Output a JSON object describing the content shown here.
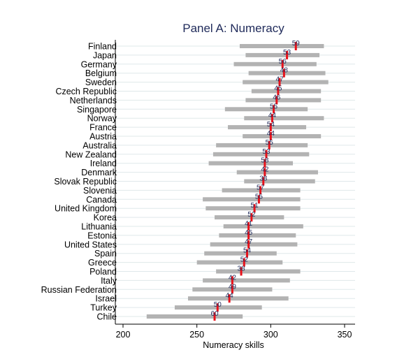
{
  "chart_data": {
    "type": "bar",
    "title": "Panel A: Numeracy",
    "xlabel": "Numeracy skills",
    "ylabel": "",
    "xlim": [
      200,
      350
    ],
    "xticks": [
      200,
      250,
      300,
      350
    ],
    "grid": true,
    "colors": {
      "range_bar": "#b3b3b3",
      "mean_marker": "#e8111a",
      "title": "#1f2a5a",
      "value_label": "#1f2a5a",
      "grid": "#dfe8ea"
    },
    "rows": [
      {
        "country": "Finland",
        "low": 279,
        "high": 336,
        "mean": 317,
        "label": "59"
      },
      {
        "country": "Japan",
        "low": 283,
        "high": 333,
        "mean": 311,
        "label": "53"
      },
      {
        "country": "Germany",
        "low": 275,
        "high": 331,
        "mean": 308,
        "label": "56"
      },
      {
        "country": "Belgium",
        "low": 285,
        "high": 337,
        "mean": 309,
        "label": "48"
      },
      {
        "country": "Sweden",
        "low": 281,
        "high": 339,
        "mean": 306,
        "label": "47"
      },
      {
        "country": "Czech Republic",
        "low": 287,
        "high": 334,
        "mean": 305,
        "label": "45"
      },
      {
        "country": "Netherlands",
        "low": 283,
        "high": 334,
        "mean": 304,
        "label": "46"
      },
      {
        "country": "Singapore",
        "low": 269,
        "high": 325,
        "mean": 302,
        "label": "55"
      },
      {
        "country": "Norway",
        "low": 282,
        "high": 336,
        "mean": 301,
        "label": "44"
      },
      {
        "country": "France",
        "low": 271,
        "high": 324,
        "mean": 300,
        "label": "54"
      },
      {
        "country": "Austria",
        "low": 281,
        "high": 334,
        "mean": 300,
        "label": "44"
      },
      {
        "country": "Australia",
        "low": 263,
        "high": 325,
        "mean": 299,
        "label": "55"
      },
      {
        "country": "New Zealand",
        "low": 261,
        "high": 326,
        "mean": 297,
        "label": "53"
      },
      {
        "country": "Ireland",
        "low": 258,
        "high": 315,
        "mean": 296,
        "label": "58"
      },
      {
        "country": "Denmark",
        "low": 277,
        "high": 332,
        "mean": 296,
        "label": "42"
      },
      {
        "country": "Slovak Republic",
        "low": 282,
        "high": 330,
        "mean": 295,
        "label": "38"
      },
      {
        "country": "Slovenia",
        "low": 267,
        "high": 320,
        "mean": 293,
        "label": "57"
      },
      {
        "country": "Canada",
        "low": 254,
        "high": 320,
        "mean": 292,
        "label": "55"
      },
      {
        "country": "United Kingdom",
        "low": 256,
        "high": 320,
        "mean": 289,
        "label": "51"
      },
      {
        "country": "Korea",
        "low": 262,
        "high": 309,
        "mean": 287,
        "label": "52"
      },
      {
        "country": "Lithuania",
        "low": 268,
        "high": 322,
        "mean": 285,
        "label": "41"
      },
      {
        "country": "Estonia",
        "low": 265,
        "high": 317,
        "mean": 285,
        "label": "45"
      },
      {
        "country": "United States",
        "low": 259,
        "high": 318,
        "mean": 285,
        "label": "47"
      },
      {
        "country": "Spain",
        "low": 255,
        "high": 304,
        "mean": 284,
        "label": "54"
      },
      {
        "country": "Greece",
        "low": 250,
        "high": 308,
        "mean": 282,
        "label": "52"
      },
      {
        "country": "Poland",
        "low": 263,
        "high": 320,
        "mean": 280,
        "label": "38"
      },
      {
        "country": "Italy",
        "low": 254,
        "high": 313,
        "mean": 274,
        "label": "42"
      },
      {
        "country": "Russian Federation",
        "low": 247,
        "high": 301,
        "mean": 274,
        "label": "49"
      },
      {
        "country": "Israel",
        "low": 244,
        "high": 312,
        "mean": 272,
        "label": "44"
      },
      {
        "country": "Turkey",
        "low": 235,
        "high": 294,
        "mean": 264,
        "label": "50"
      },
      {
        "country": "Chile",
        "low": 216,
        "high": 281,
        "mean": 262,
        "label": "60"
      }
    ]
  }
}
